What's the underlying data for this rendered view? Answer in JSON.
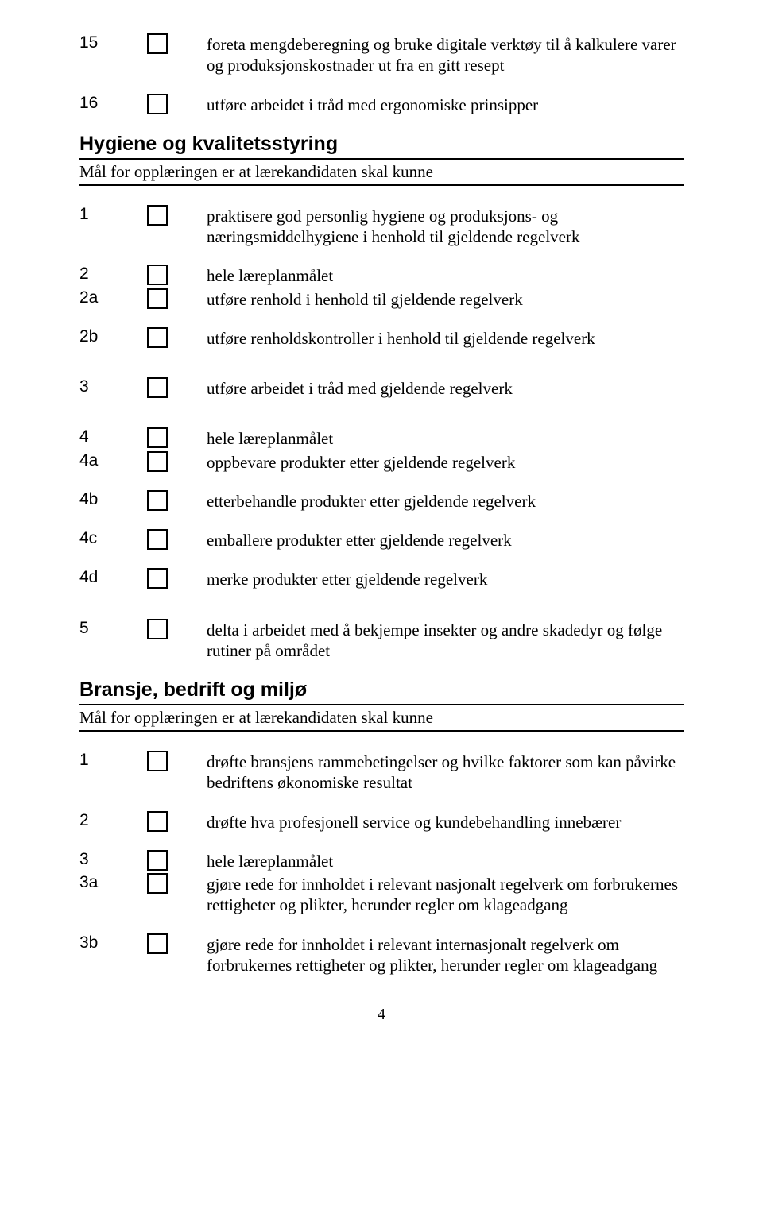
{
  "top_items": [
    {
      "num": "15",
      "text": "foreta mengdeberegning og bruke digitale verktøy til å kalkulere varer og produksjonskostnader ut fra en gitt resept"
    },
    {
      "num": "16",
      "text": "utføre arbeidet i tråd med ergonomiske prinsipper"
    }
  ],
  "section_a": {
    "title": "Hygiene og kvalitetsstyring",
    "subtitle": "Mål for opplæringen er at lærekandidaten skal kunne",
    "groups": [
      [
        {
          "num": "1",
          "text": "praktisere god personlig hygiene og produksjons- og næringsmiddelhygiene i henhold til gjeldende regelverk"
        }
      ],
      [
        {
          "num": "2",
          "text": "hele læreplanmålet"
        },
        {
          "num": "2a",
          "text": "utføre renhold i henhold til gjeldende regelverk"
        },
        {
          "num": "2b",
          "text": "utføre renholdskontroller i henhold til gjeldende regelverk"
        }
      ],
      [
        {
          "num": "3",
          "text": "utføre arbeidet i tråd med gjeldende regelverk"
        }
      ],
      [
        {
          "num": "4",
          "text": "hele læreplanmålet"
        },
        {
          "num": "4a",
          "text": "oppbevare produkter etter gjeldende regelverk"
        },
        {
          "num": "4b",
          "text": "etterbehandle produkter etter gjeldende regelverk"
        },
        {
          "num": "4c",
          "text": "emballere produkter etter gjeldende regelverk"
        },
        {
          "num": "4d",
          "text": "merke produkter etter gjeldende regelverk"
        }
      ],
      [
        {
          "num": "5",
          "text": "delta i arbeidet med å bekjempe insekter og andre skadedyr og følge rutiner på området"
        }
      ]
    ]
  },
  "section_b": {
    "title": "Bransje, bedrift og miljø",
    "subtitle": "Mål for opplæringen er at lærekandidaten skal kunne",
    "groups": [
      [
        {
          "num": "1",
          "text": "drøfte bransjens rammebetingelser og hvilke faktorer som kan påvirke bedriftens økonomiske resultat"
        }
      ],
      [
        {
          "num": "2",
          "text": "drøfte hva profesjonell service og kundebehandling innebærer"
        }
      ],
      [
        {
          "num": "3",
          "text": "hele læreplanmålet"
        },
        {
          "num": "3a",
          "text": "gjøre rede for innholdet i relevant nasjonalt regelverk om forbrukernes rettigheter og plikter, herunder regler om klageadgang"
        },
        {
          "num": "3b",
          "text": "gjøre rede for innholdet i relevant internasjonalt regelverk om forbrukernes rettigheter og plikter, herunder regler om klageadgang"
        }
      ]
    ]
  },
  "page_number": "4"
}
